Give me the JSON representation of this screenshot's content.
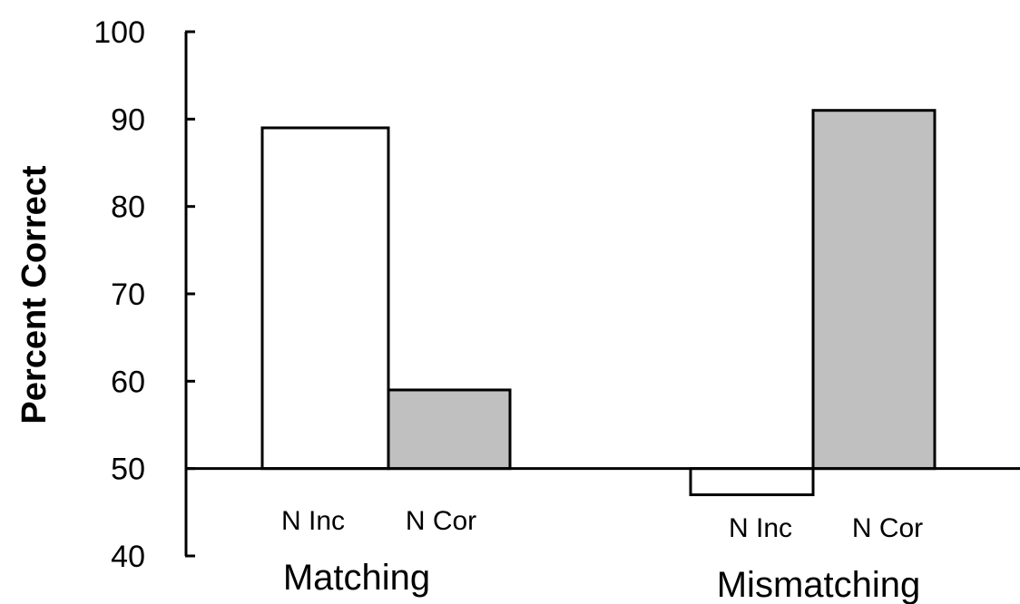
{
  "chart_data": {
    "type": "bar",
    "title": "",
    "xlabel": "",
    "ylabel": "Percent Correct",
    "ylim": [
      40,
      100
    ],
    "yticks": [
      40,
      50,
      60,
      70,
      80,
      90,
      100
    ],
    "baseline": 50,
    "grid": false,
    "categories": [
      "Matching",
      "Mismatching"
    ],
    "bars": [
      {
        "group": "Matching",
        "label": "N Inc",
        "value": 89,
        "color": "#ffffff"
      },
      {
        "group": "Matching",
        "label": "N Cor",
        "value": 59,
        "color": "#c0c0c0"
      },
      {
        "group": "Mismatching",
        "label": "N Inc",
        "value": 47,
        "color": "#ffffff"
      },
      {
        "group": "Mismatching",
        "label": "N Cor",
        "value": 91,
        "color": "#c0c0c0"
      }
    ],
    "colors": {
      "n_inc": "#ffffff",
      "n_cor": "#c0c0c0",
      "stroke": "#000000"
    }
  }
}
